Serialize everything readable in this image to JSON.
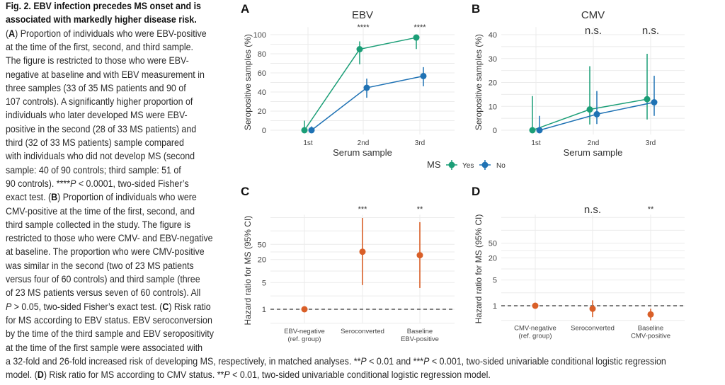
{
  "caption": {
    "lines": [
      [
        {
          "t": "Fig. 2. EBV infection precedes MS onset and is",
          "s": "b"
        }
      ],
      [
        {
          "t": "associated with markedly higher disease risk.",
          "s": "b"
        }
      ],
      [
        {
          "t": "("
        },
        {
          "t": "A",
          "s": "b"
        },
        {
          "t": ") Proportion of individuals who were EBV-positive"
        }
      ],
      [
        {
          "t": "at the time of the first, second, and third sample."
        }
      ],
      [
        {
          "t": "The figure is restricted to those who were EBV-"
        }
      ],
      [
        {
          "t": "negative at baseline and with EBV measurement in"
        }
      ],
      [
        {
          "t": "three samples (33 of 35 MS patients and 90 of"
        }
      ],
      [
        {
          "t": "107 controls). A significantly higher proportion of"
        }
      ],
      [
        {
          "t": "individuals who later developed MS were EBV-"
        }
      ],
      [
        {
          "t": "positive in the second (28 of 33 MS patients) and"
        }
      ],
      [
        {
          "t": "third (32 of 33 MS patients) sample compared"
        }
      ],
      [
        {
          "t": "with individuals who did not develop MS (second"
        }
      ],
      [
        {
          "t": "sample: 40 of 90 controls; third sample: 51 of"
        }
      ],
      [
        {
          "t": "90 controls). ****"
        },
        {
          "t": "P",
          "s": "i"
        },
        {
          "t": " < 0.0001, two-sided Fisher’s"
        }
      ],
      [
        {
          "t": "exact test. ("
        },
        {
          "t": "B",
          "s": "b"
        },
        {
          "t": ") Proportion of individuals who were"
        }
      ],
      [
        {
          "t": "CMV-positive at the time of the first, second, and"
        }
      ],
      [
        {
          "t": "third sample collected in the study. The figure is"
        }
      ],
      [
        {
          "t": "restricted to those who were CMV- and EBV-negative"
        }
      ],
      [
        {
          "t": "at baseline. The proportion who were CMV-positive"
        }
      ],
      [
        {
          "t": "was similar in the second (two of 23 MS patients"
        }
      ],
      [
        {
          "t": "versus four of 60 controls) and third sample (three"
        }
      ],
      [
        {
          "t": "of 23 MS patients versus seven of 60 controls). All"
        }
      ],
      [
        {
          "t": "P",
          "s": "i"
        },
        {
          "t": " > 0.05, two-sided Fisher’s exact test. ("
        },
        {
          "t": "C",
          "s": "b"
        },
        {
          "t": ") Risk ratio"
        }
      ],
      [
        {
          "t": "for MS according to EBV status. EBV seroconversion"
        }
      ],
      [
        {
          "t": "by the time of the third sample and EBV seropositivity"
        }
      ],
      [
        {
          "t": "at the time of the first sample were associated with"
        }
      ],
      [
        {
          "t": "a 32-fold and 26-fold increased risk of developing MS, respectively, in matched analyses. **"
        },
        {
          "t": "P",
          "s": "i"
        },
        {
          "t": " < 0.01 and ***"
        },
        {
          "t": "P",
          "s": "i"
        },
        {
          "t": " < 0.001, two-sided univariable conditional logistic regression"
        }
      ],
      [
        {
          "t": "model. ("
        },
        {
          "t": "D",
          "s": "b"
        },
        {
          "t": ") Risk ratio for MS according to CMV status. **"
        },
        {
          "t": "P",
          "s": "i"
        },
        {
          "t": " < 0.01, two-sided univariable conditional logistic regression model."
        }
      ]
    ]
  },
  "colors": {
    "yes": "#1b9e77",
    "no": "#1f72b4",
    "hr": "#d95f28",
    "grid": "#ebebeb",
    "text": "#333333"
  },
  "legend": {
    "title": "MS",
    "items": [
      "Yes",
      "No"
    ]
  },
  "chart_data": [
    {
      "panel": "A",
      "type": "line",
      "title": "EBV",
      "xlabel": "Serum sample",
      "ylabel": "Seropositive samples (%)",
      "categories": [
        "1st",
        "2nd",
        "3rd"
      ],
      "ylim": [
        0,
        105
      ],
      "yticks": [
        0,
        20,
        40,
        60,
        80,
        100
      ],
      "significance": [
        "",
        "****",
        "****"
      ],
      "series": [
        {
          "name": "Yes",
          "values": [
            0,
            84.8,
            97.0
          ],
          "ci_low": [
            0,
            69,
            85
          ],
          "ci_high": [
            10,
            93,
            100
          ]
        },
        {
          "name": "No",
          "values": [
            0,
            44.4,
            56.7
          ],
          "ci_low": [
            0,
            34,
            46
          ],
          "ci_high": [
            4,
            54,
            66
          ]
        }
      ]
    },
    {
      "panel": "B",
      "type": "line",
      "title": "CMV",
      "xlabel": "Serum sample",
      "ylabel": "Seropositive samples (%)",
      "categories": [
        "1st",
        "2nd",
        "3rd"
      ],
      "ylim": [
        0,
        42
      ],
      "yticks": [
        0,
        10,
        20,
        30,
        40
      ],
      "significance": [
        "",
        "n.s.",
        "n.s."
      ],
      "series": [
        {
          "name": "Yes",
          "values": [
            0,
            8.7,
            13.0
          ],
          "ci_low": [
            0,
            2.4,
            4.5
          ],
          "ci_high": [
            14.3,
            26.8,
            32
          ]
        },
        {
          "name": "No",
          "values": [
            0,
            6.7,
            11.7
          ],
          "ci_low": [
            0,
            2.6,
            6
          ],
          "ci_high": [
            6,
            16.4,
            22.8
          ]
        }
      ]
    },
    {
      "panel": "C",
      "type": "scatter",
      "title": "",
      "xlabel": "",
      "ylabel": "Hazard ratio for MS (95% CI)",
      "yscale": "log",
      "categories": [
        [
          "EBV-negative",
          "(ref. group)"
        ],
        [
          "Seroconverted"
        ],
        [
          "Baseline",
          "EBV-positive"
        ]
      ],
      "ylim": [
        0.43,
        250
      ],
      "yticks": [
        1,
        5,
        20,
        50
      ],
      "reference_line": 1,
      "significance": [
        "",
        "***",
        "**"
      ],
      "values": [
        1,
        32,
        26
      ],
      "ci_low": [
        null,
        4.3,
        3.6
      ],
      "ci_high": [
        null,
        245,
        190
      ]
    },
    {
      "panel": "D",
      "type": "scatter",
      "title": "",
      "xlabel": "",
      "ylabel": "Hazard ratio for MS (95% CI)",
      "yscale": "log",
      "categories": [
        [
          "CMV-negative",
          "(ref. group)"
        ],
        [
          "Seroconverted"
        ],
        [
          "Baseline",
          "CMV-positive"
        ]
      ],
      "ylim": [
        0.4,
        250
      ],
      "yticks": [
        1,
        5,
        20,
        50
      ],
      "reference_line": 1,
      "significance": [
        "",
        "n.s.",
        "**"
      ],
      "values": [
        1,
        0.83,
        0.58
      ],
      "ci_low": [
        null,
        0.49,
        0.4
      ],
      "ci_high": [
        null,
        1.4,
        0.83
      ]
    }
  ]
}
